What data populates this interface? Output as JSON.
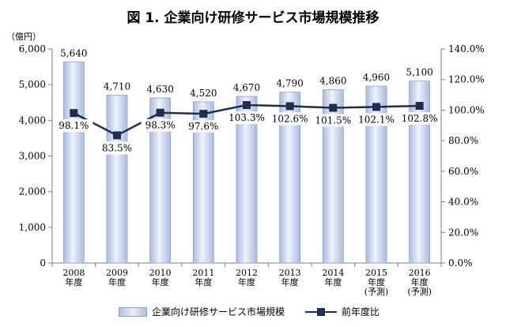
{
  "chart_data": {
    "type": "bar",
    "title": "図 1. 企業向け研修サービス市場規模推移",
    "y_unit_label": "（億円）",
    "categories": [
      [
        "2008",
        "年度"
      ],
      [
        "2009",
        "年度"
      ],
      [
        "2010",
        "年度"
      ],
      [
        "2011",
        "年度"
      ],
      [
        "2012",
        "年度"
      ],
      [
        "2013",
        "年度"
      ],
      [
        "2014",
        "年度"
      ],
      [
        "2015",
        "年度",
        "(予測)"
      ],
      [
        "2016",
        "年度",
        "(予測)"
      ]
    ],
    "series": [
      {
        "name": "企業向け研修サービス市場規模",
        "type": "bar",
        "axis": "left",
        "values": [
          5640,
          4710,
          4630,
          4520,
          4670,
          4790,
          4860,
          4960,
          5100
        ],
        "value_labels": [
          "5,640",
          "4,710",
          "4,630",
          "4,520",
          "4,670",
          "4,790",
          "4,860",
          "4,960",
          "5,100"
        ]
      },
      {
        "name": "前年度比",
        "type": "line",
        "axis": "right",
        "values": [
          98.1,
          83.5,
          98.3,
          97.6,
          103.3,
          102.6,
          101.5,
          102.1,
          102.8
        ],
        "value_labels": [
          "98.1%",
          "83.5%",
          "98.3%",
          "97.6%",
          "103.3%",
          "102.6%",
          "101.5%",
          "102.1%",
          "102.8%"
        ]
      }
    ],
    "ylim_left": [
      0,
      6000
    ],
    "yticks_left": [
      "0",
      "1,000",
      "2,000",
      "3,000",
      "4,000",
      "5,000",
      "6,000"
    ],
    "ylim_right": [
      0,
      140
    ],
    "yticks_right": [
      "0.0%",
      "20.0%",
      "40.0%",
      "60.0%",
      "80.0%",
      "100.0%",
      "120.0%",
      "140.0%"
    ],
    "grid": false,
    "legend_position": "bottom",
    "colors": {
      "bar_fill": "#c9d5ee",
      "bar_edge": "#8ea3cc",
      "line": "#1f2d4f"
    }
  }
}
